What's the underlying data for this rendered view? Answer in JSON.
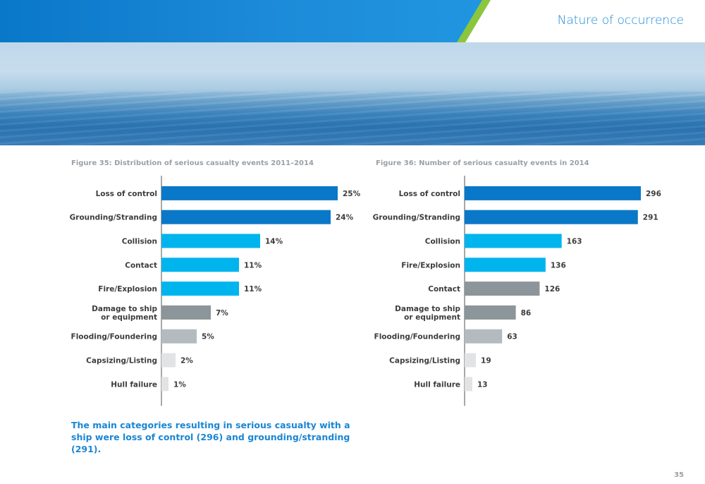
{
  "header": {
    "title": "Nature of occurrence",
    "colors": {
      "primary_blue": "#0a78c8",
      "accent_green": "#8cc63f",
      "title_blue": "#1a86d4"
    }
  },
  "photo": {
    "icon": "sea-horizon-photo"
  },
  "figures": {
    "fig35_title": "Figure 35: Distribution of serious casualty events 2011–2014",
    "fig36_title": "Figure 36: Number of serious casualty events in 2014"
  },
  "chart_data": [
    {
      "type": "bar",
      "orientation": "horizontal",
      "title": "Figure 35: Distribution of serious casualty events 2011–2014",
      "categories": [
        "Loss of control",
        "Grounding/Stranding",
        "Collision",
        "Contact",
        "Fire/Explosion",
        "Damage to ship or equipment",
        "Flooding/Foundering",
        "Capsizing/Listing",
        "Hull failure"
      ],
      "values": [
        25,
        24,
        14,
        11,
        11,
        7,
        5,
        2,
        1
      ],
      "value_labels": [
        "25%",
        "24%",
        "14%",
        "11%",
        "11%",
        "7%",
        "5%",
        "2%",
        "1%"
      ],
      "colors": [
        "#0a78c8",
        "#0a78c8",
        "#00b4ee",
        "#00b4ee",
        "#00b4ee",
        "#8c9599",
        "#b4bbbe",
        "#e1e3e4",
        "#e1e3e4"
      ],
      "xlim": [
        0,
        25
      ],
      "grid": false
    },
    {
      "type": "bar",
      "orientation": "horizontal",
      "title": "Figure 36: Number of serious casualty events in 2014",
      "categories": [
        "Loss of control",
        "Grounding/Stranding",
        "Collision",
        "Fire/Explosion",
        "Contact",
        "Damage to ship or equipment",
        "Flooding/Foundering",
        "Capsizing/Listing",
        "Hull failure"
      ],
      "values": [
        296,
        291,
        163,
        136,
        126,
        86,
        63,
        19,
        13
      ],
      "value_labels": [
        "296",
        "291",
        "163",
        "136",
        "126",
        "86",
        "63",
        "19",
        "13"
      ],
      "colors": [
        "#0a78c8",
        "#0a78c8",
        "#00b4ee",
        "#00b4ee",
        "#8c9599",
        "#8c9599",
        "#b4bbbe",
        "#e1e3e4",
        "#e1e3e4"
      ],
      "xlim": [
        0,
        296
      ],
      "grid": false
    }
  ],
  "summary": "The main categories resulting in serious casualty with a ship were loss of control (296) and grounding/stranding (291).",
  "page_number": "35"
}
